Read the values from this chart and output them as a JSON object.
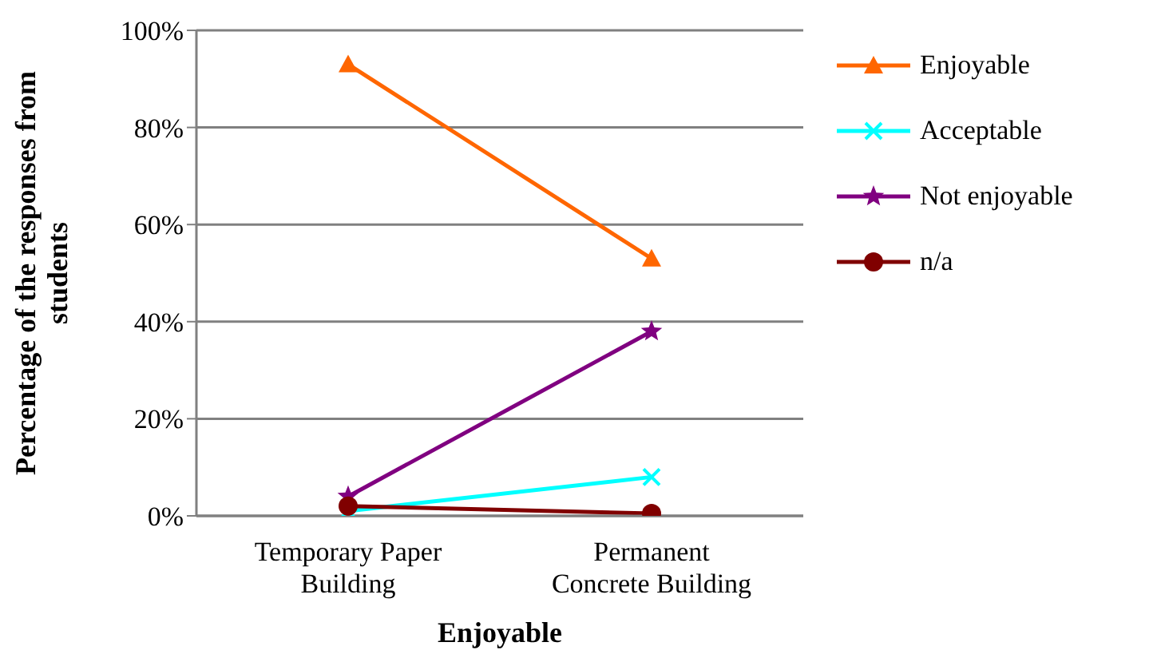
{
  "chart_data": {
    "type": "line",
    "xlabel": "Enjoyable",
    "ylabel": "Percentage of the responses from students",
    "categories": [
      "Temporary Paper Building",
      "Permanent Concrete Building"
    ],
    "series": [
      {
        "name": "Enjoyable",
        "color": "#ff6600",
        "marker": "triangle",
        "values": [
          93,
          53
        ]
      },
      {
        "name": "Acceptable",
        "color": "#00ffff",
        "marker": "cross",
        "values": [
          1,
          8
        ]
      },
      {
        "name": "Not enjoyable",
        "color": "#800080",
        "marker": "star",
        "values": [
          4,
          38
        ]
      },
      {
        "name": "n/a",
        "color": "#800000",
        "marker": "circle",
        "values": [
          2,
          0.5
        ]
      }
    ],
    "ylim": [
      0,
      100
    ],
    "yticks": [
      {
        "value": 0,
        "label": "0%"
      },
      {
        "value": 20,
        "label": "20%"
      },
      {
        "value": 40,
        "label": "40%"
      },
      {
        "value": 60,
        "label": "60%"
      },
      {
        "value": 80,
        "label": "80%"
      },
      {
        "value": 100,
        "label": "100%"
      }
    ],
    "grid": "y",
    "legend": "right"
  }
}
